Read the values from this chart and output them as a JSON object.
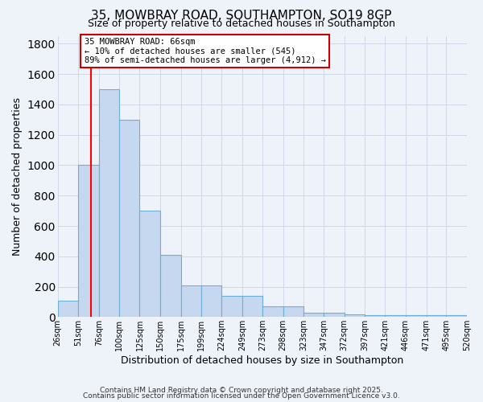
{
  "title": "35, MOWBRAY ROAD, SOUTHAMPTON, SO19 8GP",
  "subtitle": "Size of property relative to detached houses in Southampton",
  "xlabel": "Distribution of detached houses by size in Southampton",
  "ylabel": "Number of detached properties",
  "bar_values": [
    110,
    1000,
    1500,
    1300,
    700,
    410,
    210,
    210,
    140,
    140,
    70,
    70,
    30,
    30,
    20,
    10,
    10,
    10,
    10,
    10
  ],
  "bin_edges": [
    26,
    51,
    76,
    100,
    125,
    150,
    175,
    199,
    224,
    249,
    273,
    298,
    323,
    347,
    372,
    397,
    421,
    446,
    471,
    495,
    520
  ],
  "bin_labels": [
    "26sqm",
    "51sqm",
    "76sqm",
    "100sqm",
    "125sqm",
    "150sqm",
    "175sqm",
    "199sqm",
    "224sqm",
    "249sqm",
    "273sqm",
    "298sqm",
    "323sqm",
    "347sqm",
    "372sqm",
    "397sqm",
    "421sqm",
    "446sqm",
    "471sqm",
    "495sqm",
    "520sqm"
  ],
  "bar_color": "#c5d8f0",
  "bar_edge_color": "#6baed6",
  "red_line_x": 66,
  "ylim": [
    0,
    1850
  ],
  "yticks": [
    0,
    200,
    400,
    600,
    800,
    1000,
    1200,
    1400,
    1600,
    1800
  ],
  "annotation_title": "35 MOWBRAY ROAD: 66sqm",
  "annotation_line1": "← 10% of detached houses are smaller (545)",
  "annotation_line2": "89% of semi-detached houses are larger (4,912) →",
  "annotation_box_color": "#ffffff",
  "annotation_box_edge": "#cc0000",
  "grid_color": "#d0d8e8",
  "background_color": "#eef2f9",
  "footer1": "Contains HM Land Registry data © Crown copyright and database right 2025.",
  "footer2": "Contains public sector information licensed under the Open Government Licence v3.0."
}
